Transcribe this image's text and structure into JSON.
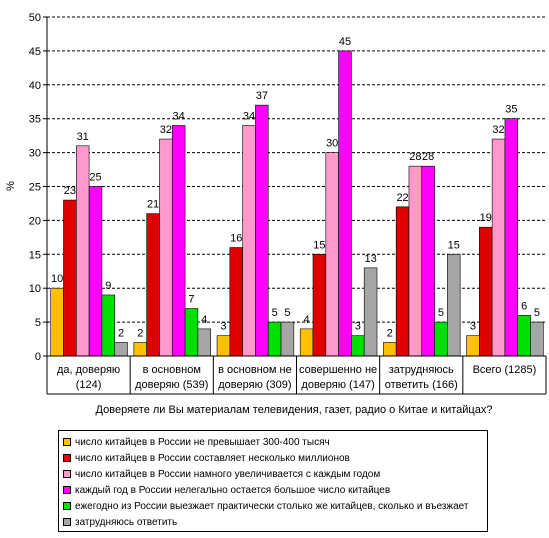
{
  "chart_data": {
    "type": "bar",
    "ylabel": "%",
    "xlabel": "Доверяете ли Вы материалам телевидения, газет, радио о Китае и китайцах?",
    "ylim": [
      0,
      50
    ],
    "yticks": [
      "0",
      "5",
      "10",
      "15",
      "20",
      "25",
      "30",
      "35",
      "40",
      "45",
      "50"
    ],
    "grid": "horizontal dashed",
    "legend_position": "bottom",
    "categories": [
      [
        "да, доверяю",
        "(124)"
      ],
      [
        "в основном",
        "доверяю (539)"
      ],
      [
        "в основном не",
        "доверяю (309)"
      ],
      [
        "совершенно не",
        "доверяю (147)"
      ],
      [
        "затрудняюсь",
        "ответить (166)"
      ],
      [
        "Всего (1285)"
      ]
    ],
    "series": [
      {
        "name": "число китайцев в России не превышает 300-400 тысяч",
        "color": "#FFC000",
        "values": [
          10,
          2,
          3,
          4,
          2,
          3
        ]
      },
      {
        "name": "число китайцев в России составляет несколько миллионов",
        "color": "#E00000",
        "values": [
          23,
          21,
          16,
          15,
          22,
          19
        ]
      },
      {
        "name": "число китайцев в России намного увеличивается с каждым годом",
        "color": "#FF99CC",
        "values": [
          31,
          32,
          34,
          30,
          28,
          32
        ]
      },
      {
        "name": "каждый год в России нелегально остается большое число китайцев",
        "color": "#FF00FF",
        "values": [
          25,
          34,
          37,
          45,
          28,
          35
        ]
      },
      {
        "name": "ежегодно из России выезжает практически столько же китайцев, сколько и въезжает",
        "color": "#00E000",
        "values": [
          9,
          7,
          5,
          3,
          5,
          6
        ]
      },
      {
        "name": "затрудняюсь ответить",
        "color": "#A6A6A6",
        "values": [
          2,
          4,
          5,
          13,
          15,
          5
        ]
      }
    ],
    "data_labels": [
      [
        "10",
        "23",
        "31",
        "25",
        "9",
        "2"
      ],
      [
        "2",
        "21",
        "32",
        "34",
        "7",
        "4"
      ],
      [
        "3",
        "16",
        "34",
        "37",
        "5",
        "5"
      ],
      [
        "4",
        "15",
        "30",
        "45",
        "3",
        "13"
      ],
      [
        "2",
        "22",
        "28",
        "28",
        "5",
        "15"
      ],
      [
        "3",
        "19",
        "32",
        "35",
        "6",
        "5"
      ]
    ]
  }
}
